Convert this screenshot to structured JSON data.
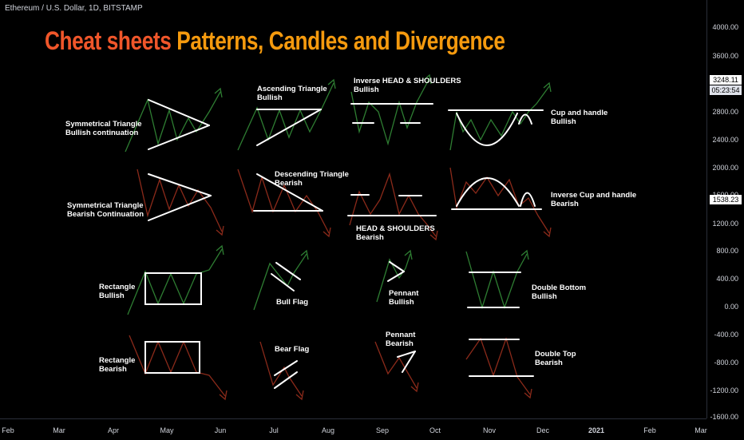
{
  "symbol_line": "Ethereum / U.S. Dollar, 1D, BITSTAMP",
  "headline": {
    "part_a": "Cheat sheets",
    "part_b": "Patterns, Candles and Divergence"
  },
  "colors": {
    "bullish": "#2e7d32",
    "bearish": "#8b2a1a",
    "trendline": "#ffffff",
    "title_a": "#f0562a",
    "title_b": "#f59a0e"
  },
  "pattern_labels": [
    {
      "id": "sym-tri-bull",
      "text": "Symmetrical Triangle\nBullish continuation"
    },
    {
      "id": "asc-tri",
      "text": "Ascending Triangle\nBullish"
    },
    {
      "id": "inv-hs",
      "text": "Inverse HEAD & SHOULDERS\nBullish"
    },
    {
      "id": "cup-handle",
      "text": "Cup and handle\nBullish"
    },
    {
      "id": "sym-tri-bear",
      "text": "Symmetrical Triangle\nBearish Continuation"
    },
    {
      "id": "desc-tri",
      "text": "Descending Triangle\nBearish"
    },
    {
      "id": "hs",
      "text": "HEAD & SHOULDERS\nBearish"
    },
    {
      "id": "inv-cup",
      "text": "Inverse Cup and handle\nBearish"
    },
    {
      "id": "rect-bull",
      "text": "Rectangle\nBullish"
    },
    {
      "id": "bull-flag",
      "text": "Bull Flag"
    },
    {
      "id": "pennant-bull",
      "text": "Pennant\nBullish"
    },
    {
      "id": "double-bottom",
      "text": "Double Bottom\nBullish"
    },
    {
      "id": "rect-bear",
      "text": "Rectangle\nBearish"
    },
    {
      "id": "bear-flag",
      "text": "Bear Flag"
    },
    {
      "id": "pennant-bear",
      "text": "Pennant\nBearish"
    },
    {
      "id": "double-top",
      "text": "Double Top\nBearish"
    }
  ],
  "chart_data": {
    "type": "line",
    "y_axis_ticks": [
      "4000.00",
      "3600.00",
      "3248.11",
      "2800.00",
      "2400.00",
      "2000.00",
      "1538.23",
      "1200.00",
      "800.00",
      "400.00",
      "0.00",
      "-400.00",
      "-800.00",
      "-1200.00",
      "-1600.00"
    ],
    "x_axis_ticks": [
      "Feb",
      "Mar",
      "Apr",
      "May",
      "Jun",
      "Jul",
      "Aug",
      "Sep",
      "Oct",
      "Nov",
      "Dec",
      "2021",
      "Feb",
      "Mar"
    ],
    "price_tags": [
      {
        "price": "3248.11",
        "countdown": "05:23:54"
      },
      {
        "price": "1538.23"
      }
    ],
    "partial_tick": "1600.00"
  }
}
